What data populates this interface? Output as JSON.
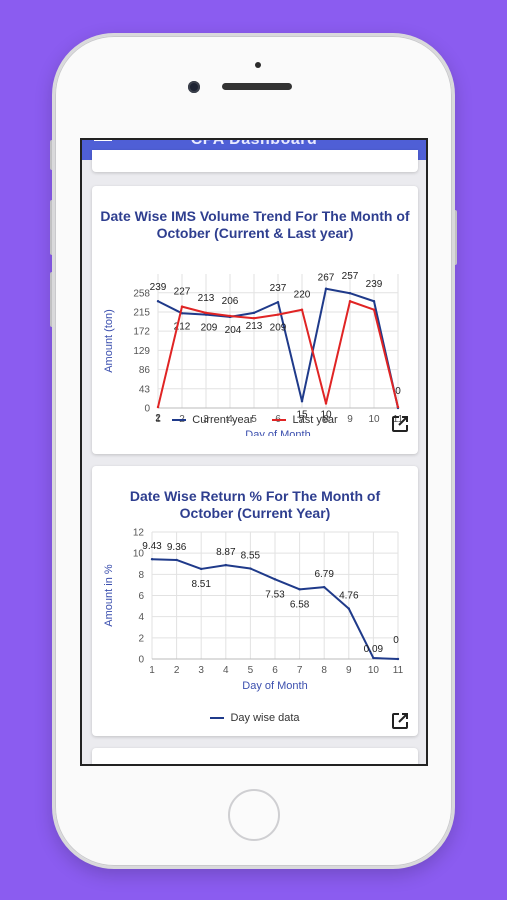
{
  "app": {
    "title": "CPA Dashboard"
  },
  "colors": {
    "background": "#8b5cf0",
    "appbar": "#4f5fd6",
    "current": "#1f3a8a",
    "last": "#e02424",
    "title": "#2e3e8f"
  },
  "icons": {
    "menu": "hamburger-menu-icon",
    "expand": "open-external-icon"
  },
  "charts": [
    {
      "title": "Date Wise IMS Volume Trend For The Month of October (Current & Last year)",
      "legend": [
        "Current year",
        "Last year"
      ]
    },
    {
      "title": "Date Wise Return % For The Month of October (Current Year)",
      "legend": [
        "Day wise data"
      ]
    }
  ],
  "chart_data": [
    {
      "type": "line",
      "title": "Date Wise IMS Volume Trend For The Month of October (Current & Last year)",
      "xlabel": "Day of Month",
      "ylabel": "Amount (ton)",
      "x": [
        1,
        2,
        3,
        4,
        5,
        6,
        7,
        8,
        9,
        10,
        11
      ],
      "yticks": [
        0,
        43,
        86,
        129,
        172,
        215,
        258
      ],
      "ylim": [
        0,
        300
      ],
      "grid": true,
      "legend_position": "bottom",
      "series": [
        {
          "name": "Current year",
          "color": "#1f3a8a",
          "values": [
            239,
            212,
            209,
            204,
            213,
            237,
            15,
            267,
            257,
            239,
            0
          ],
          "labels": [
            "239",
            "212",
            "209",
            "204",
            "213",
            "237",
            "15",
            "267",
            "257",
            "239",
            "0"
          ]
        },
        {
          "name": "Last year",
          "color": "#e02424",
          "values": [
            2,
            227,
            213,
            206,
            201,
            209,
            220,
            10,
            239,
            220,
            2
          ],
          "labels": [
            "2",
            "227",
            "213",
            "206",
            "",
            "209",
            "220",
            "10",
            "",
            "",
            ""
          ]
        }
      ]
    },
    {
      "type": "line",
      "title": "Date Wise Return % For The Month of October (Current Year)",
      "xlabel": "Day of Month",
      "ylabel": "Amount in %",
      "x": [
        1,
        2,
        3,
        4,
        5,
        6,
        7,
        8,
        9,
        10,
        11
      ],
      "yticks": [
        0,
        2,
        4,
        6,
        8,
        10,
        12
      ],
      "ylim": [
        0,
        12
      ],
      "grid": true,
      "legend_position": "bottom",
      "series": [
        {
          "name": "Day wise data",
          "color": "#1f3a8a",
          "values": [
            9.43,
            9.36,
            8.51,
            8.87,
            8.55,
            7.53,
            6.58,
            6.79,
            4.76,
            0.09,
            0
          ],
          "labels": [
            "9.43",
            "9.36",
            "8.51",
            "8.87",
            "8.55",
            "7.53",
            "6.58",
            "6.79",
            "4.76",
            "0.09",
            "0"
          ]
        }
      ]
    }
  ]
}
